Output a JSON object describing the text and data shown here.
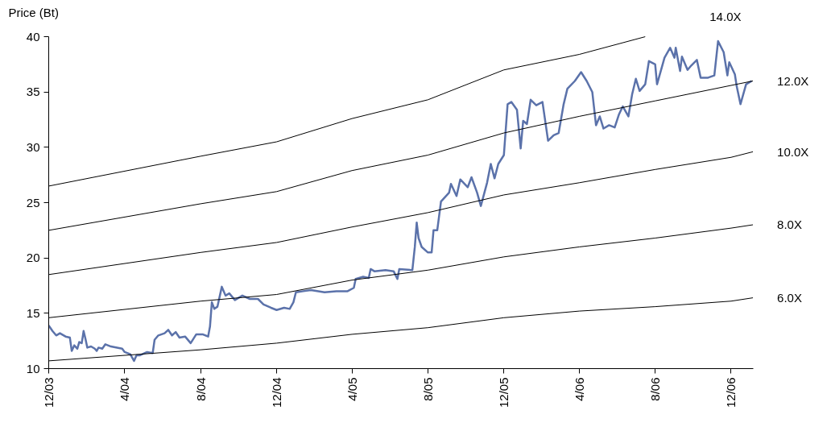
{
  "chart_data": {
    "type": "line",
    "ylabel": "Price (Bt)",
    "xlim": [
      "2003-12-01",
      "2007-01-05"
    ],
    "ylim": [
      10,
      40
    ],
    "xticks": [
      {
        "value": "2003-12-01",
        "label": "12/03"
      },
      {
        "value": "2004-04-01",
        "label": "4/04"
      },
      {
        "value": "2004-08-01",
        "label": "8/04"
      },
      {
        "value": "2004-12-01",
        "label": "12/04"
      },
      {
        "value": "2005-04-01",
        "label": "4/05"
      },
      {
        "value": "2005-08-01",
        "label": "8/05"
      },
      {
        "value": "2005-12-01",
        "label": "12/05"
      },
      {
        "value": "2006-04-01",
        "label": "4/06"
      },
      {
        "value": "2006-08-01",
        "label": "8/06"
      },
      {
        "value": "2006-12-01",
        "label": "12/06"
      }
    ],
    "yticks": [
      10,
      15,
      20,
      25,
      30,
      35,
      40
    ],
    "series": [
      {
        "color": "#5b72aa",
        "x": [
          "2003-12-01",
          "2003-12-07",
          "2003-12-13",
          "2003-12-19",
          "2003-12-28",
          "2004-01-04",
          "2004-01-07",
          "2004-01-11",
          "2004-01-16",
          "2004-01-19",
          "2004-01-23",
          "2004-01-25",
          "2004-01-26",
          "2004-01-29",
          "2004-02-01",
          "2004-02-07",
          "2004-02-13",
          "2004-02-16",
          "2004-02-19",
          "2004-02-25",
          "2004-03-01",
          "2004-03-10",
          "2004-03-28",
          "2004-04-01",
          "2004-04-10",
          "2004-04-16",
          "2004-04-20",
          "2004-04-25",
          "2004-05-07",
          "2004-05-16",
          "2004-05-19",
          "2004-05-25",
          "2004-06-04",
          "2004-06-10",
          "2004-06-16",
          "2004-06-22",
          "2004-06-28",
          "2004-07-07",
          "2004-07-16",
          "2004-07-25",
          "2004-08-04",
          "2004-08-13",
          "2004-08-16",
          "2004-08-19",
          "2004-08-23",
          "2004-08-28",
          "2004-09-04",
          "2004-09-10",
          "2004-09-16",
          "2004-09-25",
          "2004-10-07",
          "2004-10-19",
          "2004-11-01",
          "2004-11-10",
          "2004-11-22",
          "2004-12-01",
          "2004-12-13",
          "2004-12-22",
          "2004-12-28",
          "2005-01-01",
          "2005-01-13",
          "2005-01-25",
          "2005-02-16",
          "2005-03-07",
          "2005-03-25",
          "2005-04-04",
          "2005-04-07",
          "2005-04-19",
          "2005-04-28",
          "2005-05-01",
          "2005-05-07",
          "2005-05-25",
          "2005-06-07",
          "2005-06-13",
          "2005-06-16",
          "2005-07-07",
          "2005-07-11",
          "2005-07-14",
          "2005-07-17",
          "2005-07-22",
          "2005-08-01",
          "2005-08-07",
          "2005-08-10",
          "2005-08-16",
          "2005-08-22",
          "2005-09-04",
          "2005-09-07",
          "2005-09-16",
          "2005-09-22",
          "2005-10-04",
          "2005-10-10",
          "2005-10-19",
          "2005-10-25",
          "2005-11-04",
          "2005-11-10",
          "2005-11-16",
          "2005-11-22",
          "2005-12-01",
          "2005-12-07",
          "2005-12-13",
          "2005-12-22",
          "2005-12-28",
          "2006-01-01",
          "2006-01-07",
          "2006-01-13",
          "2006-01-22",
          "2006-02-01",
          "2006-02-10",
          "2006-02-19",
          "2006-02-27",
          "2006-03-07",
          "2006-03-13",
          "2006-03-25",
          "2006-04-04",
          "2006-04-13",
          "2006-04-22",
          "2006-04-28",
          "2006-05-04",
          "2006-05-10",
          "2006-05-19",
          "2006-05-28",
          "2006-06-04",
          "2006-06-10",
          "2006-06-19",
          "2006-06-25",
          "2006-07-01",
          "2006-07-07",
          "2006-07-16",
          "2006-07-22",
          "2006-08-01",
          "2006-08-04",
          "2006-08-10",
          "2006-08-16",
          "2006-08-25",
          "2006-09-01",
          "2006-09-03",
          "2006-09-10",
          "2006-09-13",
          "2006-09-22",
          "2006-09-28",
          "2006-10-07",
          "2006-10-13",
          "2006-10-25",
          "2006-11-04",
          "2006-11-10",
          "2006-11-19",
          "2006-11-25",
          "2006-11-28",
          "2006-12-07",
          "2006-12-10",
          "2006-12-16",
          "2006-12-25",
          "2007-01-03"
        ],
        "values": [
          13.9,
          13.4,
          13.0,
          13.2,
          12.9,
          12.8,
          11.6,
          12.1,
          11.8,
          12.4,
          12.3,
          13.0,
          13.4,
          12.7,
          11.9,
          12.0,
          11.8,
          11.6,
          11.9,
          11.8,
          12.2,
          12.0,
          11.8,
          11.5,
          11.3,
          10.7,
          11.2,
          11.2,
          11.5,
          11.4,
          12.6,
          13.0,
          13.2,
          13.5,
          13.0,
          13.3,
          12.8,
          12.9,
          12.3,
          13.1,
          13.1,
          12.9,
          13.8,
          16.0,
          15.4,
          15.6,
          17.4,
          16.6,
          16.8,
          16.2,
          16.6,
          16.3,
          16.3,
          15.8,
          15.5,
          15.3,
          15.5,
          15.4,
          16.0,
          16.9,
          17.0,
          17.1,
          16.9,
          17.0,
          17.0,
          17.3,
          18.1,
          18.3,
          18.2,
          19.0,
          18.8,
          18.9,
          18.8,
          18.1,
          19.0,
          18.9,
          21.0,
          23.2,
          21.8,
          21.0,
          20.5,
          20.5,
          22.5,
          22.5,
          25.1,
          25.9,
          26.7,
          25.6,
          27.1,
          26.4,
          27.3,
          25.9,
          24.7,
          26.8,
          28.5,
          27.2,
          28.5,
          29.3,
          33.9,
          34.1,
          33.4,
          29.9,
          32.4,
          32.1,
          34.3,
          33.8,
          34.1,
          30.6,
          31.1,
          31.3,
          33.9,
          35.3,
          36.0,
          36.8,
          36.0,
          35.0,
          32.0,
          32.8,
          31.7,
          32.0,
          31.8,
          33.0,
          33.7,
          32.8,
          34.8,
          36.2,
          35.1,
          35.7,
          37.8,
          37.5,
          35.7,
          36.9,
          38.1,
          39.0,
          38.1,
          39.0,
          36.9,
          38.2,
          37.0,
          37.4,
          37.9,
          36.3,
          36.3,
          36.5,
          39.6,
          38.6,
          36.5,
          37.7,
          36.6,
          35.5,
          33.9,
          35.7,
          36.0
        ]
      },
      {
        "name": "14.0X",
        "color": "#000000",
        "x": [
          "2003-12-01",
          "2004-08-01",
          "2004-12-01",
          "2005-04-01",
          "2005-08-01",
          "2005-12-01",
          "2006-04-01",
          "2006-07-16"
        ],
        "values": [
          26.5,
          29.2,
          30.5,
          32.6,
          34.3,
          37.0,
          38.4,
          40.0
        ]
      },
      {
        "name": "12.0X",
        "color": "#000000",
        "x": [
          "2003-12-01",
          "2004-08-01",
          "2004-12-01",
          "2005-04-01",
          "2005-08-01",
          "2005-12-01",
          "2006-04-01",
          "2006-08-01",
          "2006-12-01",
          "2007-01-05"
        ],
        "values": [
          22.5,
          24.9,
          26.0,
          27.9,
          29.3,
          31.3,
          32.8,
          34.2,
          35.6,
          36.0
        ]
      },
      {
        "name": "10.0X",
        "color": "#000000",
        "x": [
          "2003-12-01",
          "2004-08-01",
          "2004-12-01",
          "2005-04-01",
          "2005-08-01",
          "2005-12-01",
          "2006-04-01",
          "2006-08-01",
          "2006-12-01",
          "2007-01-05"
        ],
        "values": [
          18.5,
          20.5,
          21.4,
          22.8,
          24.1,
          25.7,
          26.8,
          28.0,
          29.1,
          29.6
        ]
      },
      {
        "name": "8.0X",
        "color": "#000000",
        "x": [
          "2003-12-01",
          "2004-08-01",
          "2004-12-01",
          "2005-04-01",
          "2005-08-01",
          "2005-12-01",
          "2006-04-01",
          "2006-08-01",
          "2006-12-01",
          "2007-01-05"
        ],
        "values": [
          14.6,
          16.1,
          16.7,
          18.0,
          18.9,
          20.1,
          21.0,
          21.8,
          22.7,
          23.0
        ]
      },
      {
        "name": "6.0X",
        "color": "#000000",
        "x": [
          "2003-12-01",
          "2004-08-01",
          "2004-12-01",
          "2005-04-01",
          "2005-08-01",
          "2005-12-01",
          "2006-04-01",
          "2006-08-01",
          "2006-12-01",
          "2007-01-05"
        ],
        "values": [
          10.7,
          11.7,
          12.3,
          13.1,
          13.7,
          14.6,
          15.2,
          15.6,
          16.1,
          16.4
        ]
      }
    ]
  }
}
